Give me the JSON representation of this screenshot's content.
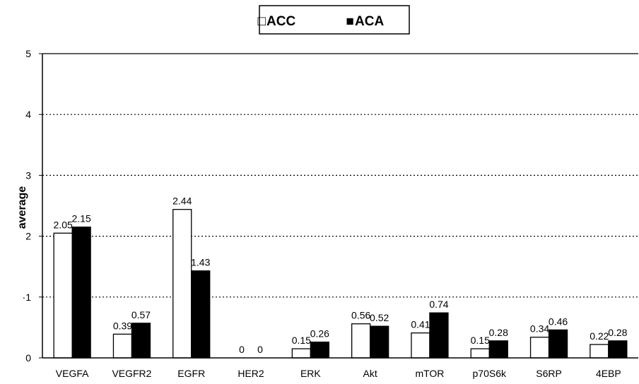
{
  "chart_data": {
    "type": "bar",
    "ylabel": "average",
    "ylim": [
      0,
      5
    ],
    "yticks": [
      0,
      1,
      2,
      3,
      4,
      5
    ],
    "ytick_labels": [
      "0",
      "·1",
      "2",
      "3",
      "4",
      "5"
    ],
    "grid": "horizontal dotted",
    "legend_position": "top-center",
    "categories": [
      "VEGFA",
      "VEGFR2",
      "EGFR",
      "HER2",
      "ERK",
      "Akt",
      "mTOR",
      "p70S6k",
      "S6RP",
      "4EBP"
    ],
    "series": [
      {
        "name": "ACC",
        "color": "#ffffff",
        "values": [
          2.05,
          0.39,
          2.44,
          0,
          0.15,
          0.56,
          0.41,
          0.15,
          0.34,
          0.22
        ],
        "labels": [
          "2.05",
          "0.39",
          "2.44",
          "0",
          "0.15",
          "0.56",
          "0.41",
          "0.15",
          "0.34",
          "0.22"
        ]
      },
      {
        "name": "ACA",
        "color": "#000000",
        "values": [
          2.15,
          0.57,
          1.43,
          0,
          0.26,
          0.52,
          0.74,
          0.28,
          0.46,
          0.28
        ],
        "labels": [
          "2.15",
          "0.57",
          "1.43",
          "0",
          "0.26",
          "0.52",
          "0.74",
          "0.28",
          "0.46",
          "0.28"
        ]
      }
    ],
    "legend_symbols": [
      "□",
      "■"
    ]
  }
}
